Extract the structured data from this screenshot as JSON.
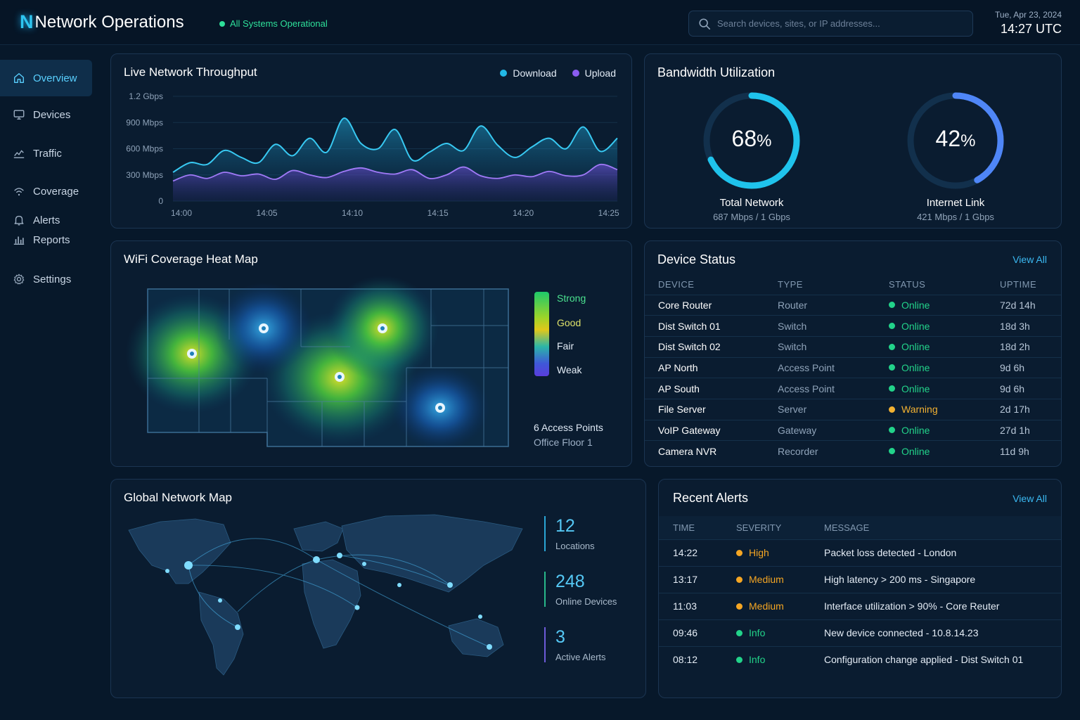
{
  "header": {
    "logo_letter": "N",
    "title": "Network Operations",
    "status": "All Systems Operational",
    "search_placeholder": "Search devices, sites, or IP addresses...",
    "date": "Tue, Apr 23, 2024",
    "time": "14:27 UTC"
  },
  "sidebar": {
    "items": [
      {
        "label": "Overview",
        "icon": "home-icon",
        "active": true
      },
      {
        "label": "Devices",
        "icon": "monitor-icon"
      },
      {
        "label": "Traffic",
        "icon": "chart-line-icon"
      },
      {
        "label": "Coverage",
        "icon": "wifi-icon"
      },
      {
        "label": "Alerts",
        "icon": "bell-icon"
      },
      {
        "label": "Reports",
        "icon": "bar-chart-icon"
      },
      {
        "label": "Settings",
        "icon": "gear-icon"
      }
    ]
  },
  "throughput": {
    "title": "Live Network Throughput",
    "legend": [
      {
        "name": "Download",
        "color": "#22b8e6"
      },
      {
        "name": "Upload",
        "color": "#8a5cf0"
      }
    ]
  },
  "chart_data": {
    "type": "area",
    "title": "Live Network Throughput",
    "x": [
      "14:00",
      "14:01",
      "14:02",
      "14:03",
      "14:04",
      "14:05",
      "14:06",
      "14:07",
      "14:08",
      "14:09",
      "14:10",
      "14:11",
      "14:12",
      "14:13",
      "14:14",
      "14:15",
      "14:16",
      "14:17",
      "14:18",
      "14:19",
      "14:20",
      "14:21",
      "14:22",
      "14:23",
      "14:24",
      "14:25",
      "14:26"
    ],
    "x_ticks": [
      "14:00",
      "14:05",
      "14:10",
      "14:15",
      "14:20",
      "14:25"
    ],
    "y_ticks": [
      "0",
      "300 Mbps",
      "600 Mbps",
      "900 Mbps",
      "1.2 Gbps"
    ],
    "y_tick_values": [
      0,
      300,
      600,
      900,
      1200
    ],
    "ylim": [
      0,
      1200
    ],
    "series": [
      {
        "name": "Download",
        "values": [
          330,
          440,
          420,
          580,
          500,
          440,
          650,
          520,
          720,
          560,
          950,
          660,
          600,
          820,
          470,
          560,
          660,
          580,
          860,
          640,
          500,
          620,
          720,
          600,
          850,
          570,
          720
        ]
      },
      {
        "name": "Upload",
        "values": [
          230,
          300,
          260,
          330,
          290,
          310,
          250,
          350,
          300,
          270,
          340,
          380,
          330,
          310,
          360,
          260,
          300,
          390,
          290,
          260,
          300,
          280,
          340,
          290,
          300,
          420,
          360
        ]
      }
    ]
  },
  "bandwidth": {
    "title": "Bandwidth Utilization",
    "gauges": [
      {
        "value": "68",
        "fraction": 0.68,
        "unit": "%",
        "label": "Total Network",
        "sub": "687 Mbps / 1 Gbps",
        "color": "#1fc3ec"
      },
      {
        "value": "42",
        "fraction": 0.42,
        "unit": "%",
        "label": "Internet Link",
        "sub": "421 Mbps / 1 Gbps",
        "color": "#4f86f7"
      }
    ]
  },
  "heatmap": {
    "title": "WiFi Coverage Heat Map",
    "legend": [
      "Strong",
      "Good",
      "Fair",
      "Weak"
    ],
    "legend_colors": [
      "#4be38f",
      "#dfe26a",
      "#e3ecf6",
      "#e3ecf6"
    ],
    "ap_count": "6 Access Points",
    "floor": "Office Floor 1"
  },
  "devices": {
    "title": "Device Status",
    "view_all": "View All",
    "columns": [
      "DEVICE",
      "TYPE",
      "STATUS",
      "UPTIME"
    ],
    "rows": [
      {
        "name": "Core Router",
        "type": "Router",
        "status": "Online",
        "uptime": "72d 14h"
      },
      {
        "name": "Dist Switch 01",
        "type": "Switch",
        "status": "Online",
        "uptime": "18d 3h"
      },
      {
        "name": "Dist Switch 02",
        "type": "Switch",
        "status": "Online",
        "uptime": "18d 2h"
      },
      {
        "name": "AP North",
        "type": "Access Point",
        "status": "Online",
        "uptime": "9d 6h"
      },
      {
        "name": "AP South",
        "type": "Access Point",
        "status": "Online",
        "uptime": "9d 6h"
      },
      {
        "name": "File Server",
        "type": "Server",
        "status": "Warning",
        "uptime": "2d 17h"
      },
      {
        "name": "VoIP Gateway",
        "type": "Gateway",
        "status": "Online",
        "uptime": "27d 1h"
      },
      {
        "name": "Camera NVR",
        "type": "Recorder",
        "status": "Online",
        "uptime": "11d 9h"
      }
    ],
    "status_colors": {
      "Online": "#22d38a",
      "Warning": "#f2b132"
    }
  },
  "global_map": {
    "title": "Global Network Map",
    "stats": [
      {
        "value": "12",
        "label": "Locations"
      },
      {
        "value": "248",
        "label": "Online Devices"
      },
      {
        "value": "3",
        "label": "Active Alerts"
      }
    ]
  },
  "alerts": {
    "title": "Recent Alerts",
    "view_all": "View All",
    "columns": [
      "TIME",
      "SEVERITY",
      "MESSAGE"
    ],
    "rows": [
      {
        "time": "14:22",
        "severity": "High",
        "message": "Packet loss detected - London"
      },
      {
        "time": "13:17",
        "severity": "Medium",
        "message": "High latency > 200 ms - Singapore"
      },
      {
        "time": "11:03",
        "severity": "Medium",
        "message": "Interface utilization > 90% - Core Reuter"
      },
      {
        "time": "09:46",
        "severity": "Info",
        "message": "New device connected - 10.8.14.23"
      },
      {
        "time": "08:12",
        "severity": "Info",
        "message": "Configuration change applied - Dist Switch 01"
      }
    ],
    "severity_colors": {
      "High": "#f5a623",
      "Medium": "#f5a623",
      "Info": "#22d38a"
    }
  }
}
